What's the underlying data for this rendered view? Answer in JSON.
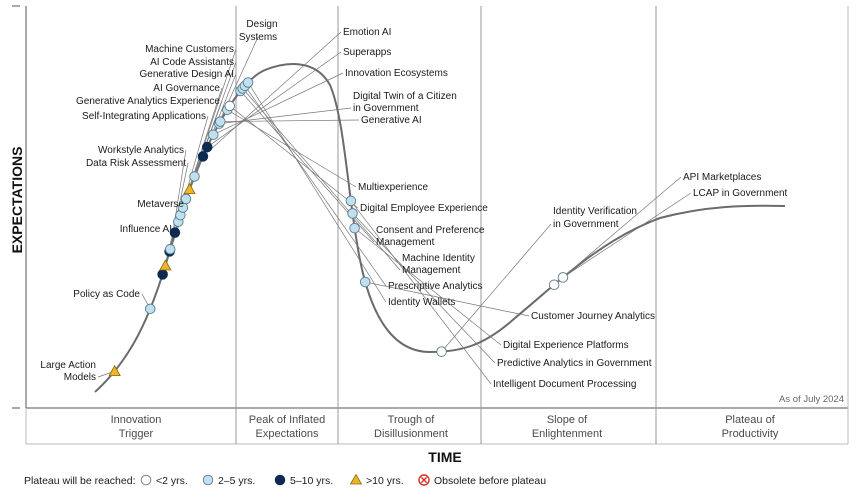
{
  "chart_data": {
    "type": "scatter",
    "title": "",
    "xlabel": "TIME",
    "ylabel": "EXPECTATIONS",
    "note": "As of July 2024",
    "phases": [
      "Innovation Trigger",
      "Peak of Inflated Expectations",
      "Trough of Disillusionment",
      "Slope of Enlightenment",
      "Plateau of Productivity"
    ],
    "legend_title": "Plateau will be reached:",
    "legend": [
      {
        "key": "lt2",
        "label": "<2 yrs.",
        "marker": "circle",
        "color": "#ffffff"
      },
      {
        "key": "2to5",
        "label": "2–5 yrs.",
        "marker": "circle",
        "color": "#bfe0ee"
      },
      {
        "key": "5to10",
        "label": "5–10 yrs.",
        "marker": "circle",
        "color": "#0d2a52"
      },
      {
        "key": "gt10",
        "label": ">10 yrs.",
        "marker": "triangle",
        "color": "#f0b429"
      },
      {
        "key": "obsolete",
        "label": "Obsolete before plateau",
        "marker": "x-circle",
        "color": "#d93025"
      }
    ],
    "points": [
      {
        "name": "Large Action Models",
        "t": 0.025,
        "cat": "gt10"
      },
      {
        "name": "Policy as Code",
        "t": 0.088,
        "cat": "2to5"
      },
      {
        "name": "Influence AI",
        "t": 0.12,
        "cat": "5to10"
      },
      {
        "name": "Metaverse",
        "t": 0.128,
        "cat": "gt10"
      },
      {
        "name": "Data Risk Assessment",
        "t": 0.141,
        "cat": "5to10"
      },
      {
        "name": "Workstyle Analytics",
        "t": 0.143,
        "cat": "2to5"
      },
      {
        "name": "Self-Integrating Applications",
        "t": 0.158,
        "cat": "5to10"
      },
      {
        "name": "Generative Analytics Experience",
        "t": 0.168,
        "cat": "2to5"
      },
      {
        "name": "AI Governance",
        "t": 0.174,
        "cat": "2to5"
      },
      {
        "name": "Generative Design AI",
        "t": 0.181,
        "cat": "2to5"
      },
      {
        "name": "AI Code Assistants",
        "t": 0.189,
        "cat": "2to5"
      },
      {
        "name": "Machine Customers",
        "t": 0.198,
        "cat": "gt10"
      },
      {
        "name": "Design Systems",
        "t": 0.21,
        "cat": "2to5"
      },
      {
        "name": "Emotion AI",
        "t": 0.229,
        "cat": "5to10"
      },
      {
        "name": "Superapps",
        "t": 0.238,
        "cat": "5to10"
      },
      {
        "name": "Innovation Ecosystems",
        "t": 0.25,
        "cat": "2to5"
      },
      {
        "name": "Digital Twin of a Citizen in Government",
        "t": 0.261,
        "cat": "2to5"
      },
      {
        "name": "Generative AI",
        "t": 0.263,
        "cat": "2to5"
      },
      {
        "name": "Multiexperience",
        "t": 0.275,
        "cat": "2to5"
      },
      {
        "name": "Digital Employee Experience",
        "t": 0.279,
        "cat": "lt2"
      },
      {
        "name": "Consent and Preference Management",
        "t": 0.295,
        "cat": "2to5"
      },
      {
        "name": "Machine Identity Management",
        "t": 0.298,
        "cat": "2to5"
      },
      {
        "name": "Prescriptive Analytics",
        "t": 0.301,
        "cat": "2to5"
      },
      {
        "name": "Identity Wallets",
        "t": 0.305,
        "cat": "2to5"
      },
      {
        "name": "Intelligent Document Processing",
        "t": 0.491,
        "cat": "2to5"
      },
      {
        "name": "Predictive Analytics in Government",
        "t": 0.502,
        "cat": "2to5"
      },
      {
        "name": "Digital Experience Platforms",
        "t": 0.515,
        "cat": "2to5"
      },
      {
        "name": "Customer Journey Analytics",
        "t": 0.563,
        "cat": "2to5"
      },
      {
        "name": "Identity Verification in Government",
        "t": 0.663,
        "cat": "lt2"
      },
      {
        "name": "API Marketplaces",
        "t": 0.78,
        "cat": "lt2"
      },
      {
        "name": "LCAP in Government",
        "t": 0.79,
        "cat": "lt2"
      }
    ]
  }
}
